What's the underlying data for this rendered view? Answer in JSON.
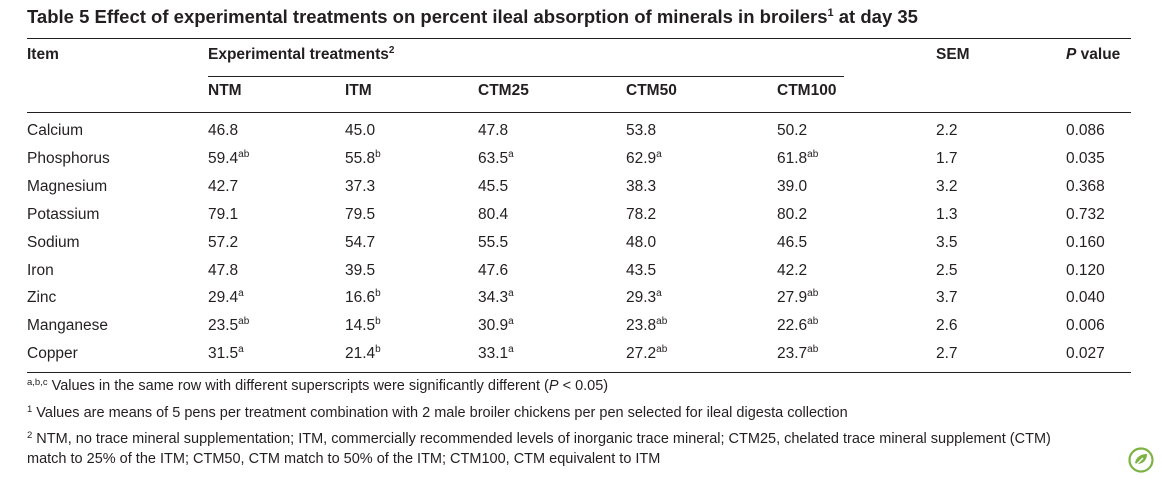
{
  "title": {
    "text": "Table 5  Effect of experimental treatments on percent ileal absorption of minerals in broilers",
    "sup": "1",
    "tail": " at day 35"
  },
  "headers": {
    "item": "Item",
    "experimental": "Experimental treatments",
    "experimental_sup": "2",
    "sem": "SEM",
    "p_value_p": "P",
    "p_value_rest": " value",
    "treatments": [
      "NTM",
      "ITM",
      "CTM25",
      "CTM50",
      "CTM100"
    ]
  },
  "rows": [
    {
      "item": "Calcium",
      "values": [
        [
          "46.8",
          ""
        ],
        [
          "45.0",
          ""
        ],
        [
          "47.8",
          ""
        ],
        [
          "53.8",
          ""
        ],
        [
          "50.2",
          ""
        ]
      ],
      "sem": "2.2",
      "p": "0.086"
    },
    {
      "item": "Phosphorus",
      "values": [
        [
          "59.4",
          "ab"
        ],
        [
          "55.8",
          "b"
        ],
        [
          "63.5",
          "a"
        ],
        [
          "62.9",
          "a"
        ],
        [
          "61.8",
          "ab"
        ]
      ],
      "sem": "1.7",
      "p": "0.035"
    },
    {
      "item": "Magnesium",
      "values": [
        [
          "42.7",
          ""
        ],
        [
          "37.3",
          ""
        ],
        [
          "45.5",
          ""
        ],
        [
          "38.3",
          ""
        ],
        [
          "39.0",
          ""
        ]
      ],
      "sem": "3.2",
      "p": "0.368"
    },
    {
      "item": "Potassium",
      "values": [
        [
          "79.1",
          ""
        ],
        [
          "79.5",
          ""
        ],
        [
          "80.4",
          ""
        ],
        [
          "78.2",
          ""
        ],
        [
          "80.2",
          ""
        ]
      ],
      "sem": "1.3",
      "p": "0.732"
    },
    {
      "item": "Sodium",
      "values": [
        [
          "57.2",
          ""
        ],
        [
          "54.7",
          ""
        ],
        [
          "55.5",
          ""
        ],
        [
          "48.0",
          ""
        ],
        [
          "46.5",
          ""
        ]
      ],
      "sem": "3.5",
      "p": "0.160"
    },
    {
      "item": "Iron",
      "values": [
        [
          "47.8",
          ""
        ],
        [
          "39.5",
          ""
        ],
        [
          "47.6",
          ""
        ],
        [
          "43.5",
          ""
        ],
        [
          "42.2",
          ""
        ]
      ],
      "sem": "2.5",
      "p": "0.120"
    },
    {
      "item": "Zinc",
      "values": [
        [
          "29.4",
          "a"
        ],
        [
          "16.6",
          "b"
        ],
        [
          "34.3",
          "a"
        ],
        [
          "29.3",
          "a"
        ],
        [
          "27.9",
          "ab"
        ]
      ],
      "sem": "3.7",
      "p": "0.040"
    },
    {
      "item": "Manganese",
      "values": [
        [
          "23.5",
          "ab"
        ],
        [
          "14.5",
          "b"
        ],
        [
          "30.9",
          "a"
        ],
        [
          "23.8",
          "ab"
        ],
        [
          "22.6",
          "ab"
        ]
      ],
      "sem": "2.6",
      "p": "0.006"
    },
    {
      "item": "Copper",
      "values": [
        [
          "31.5",
          "a"
        ],
        [
          "21.4",
          "b"
        ],
        [
          "33.1",
          "a"
        ],
        [
          "27.2",
          "ab"
        ],
        [
          "23.7",
          "ab"
        ]
      ],
      "sem": "2.7",
      "p": "0.027"
    }
  ],
  "footnotes": {
    "abc": {
      "sup": "a,b,c",
      "text_before": "Values in the same row with different superscripts were significantly different (",
      "p": "P",
      "text_after": " < 0.05)"
    },
    "n1": {
      "sup": "1",
      "text": "Values are means of 5 pens per treatment combination with 2 male broiler chickens per pen selected for ileal digesta collection"
    },
    "n2": {
      "sup": "2",
      "line1": "NTM, no trace mineral supplementation; ITM, commercially recommended levels of inorganic trace mineral; CTM25, chelated trace mineral supplement (CTM)",
      "line2": "match to 25% of the ITM; CTM50, CTM match to 50% of the ITM; CTM100, CTM equivalent to ITM"
    }
  },
  "colors": {
    "text": "#231f20",
    "logo": "#7cb342"
  },
  "icons": {
    "logo": "publisher-leaf-logo"
  }
}
